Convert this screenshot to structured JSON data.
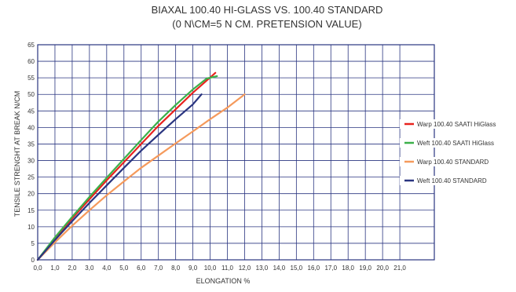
{
  "chart_data": {
    "type": "line",
    "title": "BIAXAL 100.40 HI-GLASS VS. 100.40 STANDARD",
    "subtitle": "(0 N\\CM=5 N CM. PRETENSION VALUE)",
    "xlabel": "ELONGATION %",
    "ylabel": "TENSILE STRENGHT AT BREAK N/CM",
    "xlim": [
      0,
      23
    ],
    "ylim": [
      0,
      65
    ],
    "x_ticks": [
      0,
      1,
      2,
      3,
      4,
      5,
      6,
      7,
      8,
      9,
      10,
      11,
      12,
      13,
      14,
      15,
      16,
      17,
      18,
      19,
      20,
      21
    ],
    "x_tick_labels": [
      "0,0",
      "1,0",
      "2,0",
      "3,0",
      "4,0",
      "5,0",
      "6,0",
      "7,0",
      "8,0",
      "9,0",
      "10,0",
      "11,0",
      "12,0",
      "13,0",
      "14,0",
      "15,0",
      "16,0",
      "17,0",
      "18,0",
      "19,0",
      "20,0",
      "21,0"
    ],
    "y_ticks": [
      0,
      5,
      10,
      15,
      20,
      25,
      30,
      35,
      40,
      45,
      50,
      55,
      60,
      65
    ],
    "y_tick_labels": [
      "0",
      "5",
      "10",
      "15",
      "20",
      "25",
      "30",
      "35",
      "40",
      "45",
      "50",
      "55",
      "60",
      "65"
    ],
    "grid": true,
    "legend_position": "right",
    "series": [
      {
        "name": "Warp 100.40 SAATI HiGlass",
        "color": "#e8231e",
        "x": [
          0,
          1,
          2,
          3,
          4,
          5,
          6,
          7,
          8,
          9,
          10.3
        ],
        "y": [
          0,
          6.5,
          12.5,
          18.3,
          24,
          29.5,
          35,
          40.5,
          45.5,
          50.5,
          56.5
        ]
      },
      {
        "name": "Weft 100.40 SAATI HiGlass",
        "color": "#3cb04a",
        "x": [
          0,
          1,
          2,
          3,
          4,
          5,
          6,
          7,
          8,
          9,
          9.8,
          10.4
        ],
        "y": [
          0,
          6.8,
          13,
          19,
          24.8,
          30.5,
          36.2,
          41.8,
          46.8,
          51.5,
          54.8,
          55.5
        ]
      },
      {
        "name": "Warp 100.40 STANDARD",
        "color": "#f59a5c",
        "x": [
          0,
          1,
          2,
          3,
          4,
          5,
          6,
          7,
          8,
          9,
          10,
          11,
          12
        ],
        "y": [
          0,
          5.3,
          10.3,
          15,
          19.5,
          23.7,
          27.8,
          31.5,
          35.2,
          38.8,
          42.5,
          46,
          50
        ]
      },
      {
        "name": "Weft 100.40 STANDARD",
        "color": "#2a3580",
        "x": [
          0,
          1,
          2,
          3,
          4,
          5,
          6,
          7,
          8,
          9,
          9.5
        ],
        "y": [
          0,
          6,
          11.7,
          17.2,
          22.5,
          27.8,
          33,
          37.8,
          42.5,
          47,
          50
        ]
      }
    ]
  }
}
